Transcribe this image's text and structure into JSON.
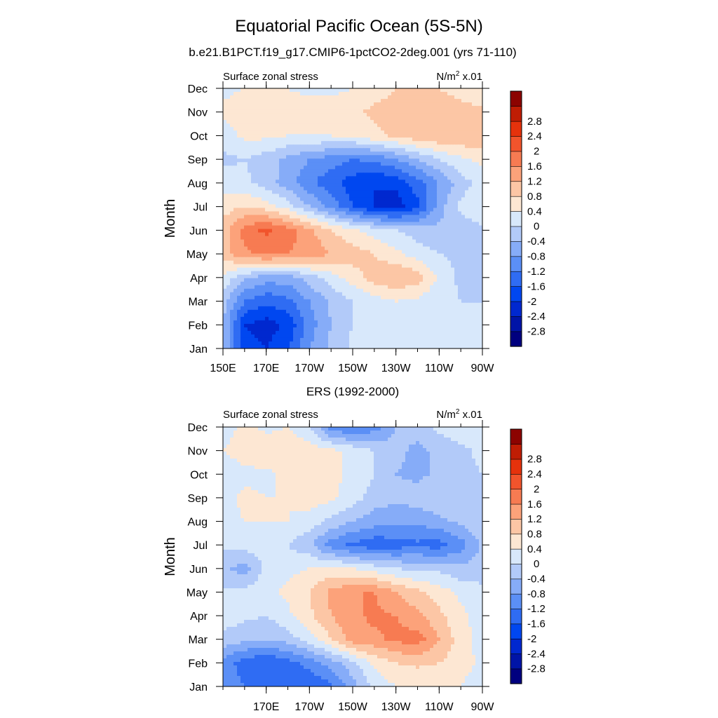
{
  "title": "Equatorial Pacific Ocean (5S-5N)",
  "subtitle": "b.e21.B1PCT.f19_g17.CMIP6-1pctCO2-2deg.001 (yrs 71-110)",
  "colors": [
    "#00007f",
    "#0014a7",
    "#0028cf",
    "#0047f0",
    "#2f6cf3",
    "#5b8ff6",
    "#86acf8",
    "#b2caf9",
    "#d8e8fb",
    "#fde7d3",
    "#fcc6a5",
    "#fca27a",
    "#f77b52",
    "#f1542c",
    "#e5320c",
    "#bf1d04",
    "#8c0300"
  ],
  "levels": [
    "-2.8",
    "-2.4",
    "-2",
    "-1.6",
    "-1.2",
    "-0.8",
    "-0.4",
    "0",
    "0.4",
    "0.8",
    "1.2",
    "1.6",
    "2",
    "2.4",
    "2.8"
  ],
  "chart_data": [
    {
      "type": "heatmap",
      "title": "b.e21.B1PCT.f19_g17.CMIP6-1pctCO2-2deg.001 (yrs 71-110)",
      "left_label": "Surface zonal stress",
      "units_prefix": "N/m",
      "units_exp": "2",
      "units_suffix": " x.01",
      "ylabel": "Month",
      "xlabel": "",
      "x_ticks": [
        "150E",
        "170E",
        "170W",
        "150W",
        "130W",
        "110W",
        "90W"
      ],
      "x_tick_lon": [
        150,
        170,
        190,
        210,
        230,
        250,
        270
      ],
      "y_ticks": [
        "Jan",
        "Feb",
        "Mar",
        "Apr",
        "May",
        "Jun",
        "Jul",
        "Aug",
        "Sep",
        "Oct",
        "Nov",
        "Dec"
      ],
      "xlim": [
        150,
        270
      ],
      "ylim": [
        1,
        12
      ],
      "contour_levels": [
        -2.8,
        -2.4,
        -2,
        -1.6,
        -1.2,
        -0.8,
        -0.4,
        0,
        0.4,
        0.8,
        1.2,
        1.6,
        2,
        2.4,
        2.8
      ],
      "lon": [
        150,
        160,
        170,
        180,
        190,
        200,
        210,
        220,
        230,
        240,
        250,
        260,
        270
      ],
      "values": [
        [
          -0.4,
          -1.8,
          -2.0,
          -1.7,
          -0.8,
          -0.3,
          0.1,
          0.3,
          0.3,
          0.2,
          0.1,
          0.0,
          0.0
        ],
        [
          -0.4,
          -2.0,
          -2.2,
          -1.9,
          -1.0,
          -0.4,
          0.0,
          0.2,
          0.3,
          0.2,
          0.1,
          0.1,
          0.0
        ],
        [
          -0.2,
          -1.2,
          -1.5,
          -1.3,
          -0.8,
          -0.3,
          0.0,
          0.2,
          0.4,
          0.3,
          0.1,
          0.0,
          0.0
        ],
        [
          0.3,
          -0.3,
          -0.6,
          -0.6,
          -0.2,
          0.2,
          0.6,
          1.0,
          1.2,
          1.0,
          0.3,
          -0.1,
          -0.1
        ],
        [
          1.0,
          1.5,
          1.7,
          1.6,
          1.5,
          1.2,
          1.0,
          0.8,
          0.5,
          0.2,
          0.0,
          -0.1,
          -0.2
        ],
        [
          1.0,
          1.8,
          2.1,
          1.8,
          1.3,
          0.8,
          0.5,
          0.2,
          0.0,
          -0.2,
          -0.3,
          -0.2,
          -0.1
        ],
        [
          0.6,
          0.8,
          0.6,
          0.2,
          -0.4,
          -0.9,
          -1.6,
          -2.0,
          -2.2,
          -1.7,
          -0.6,
          0.1,
          0.3
        ],
        [
          0.2,
          0.1,
          -0.2,
          -0.6,
          -1.1,
          -1.5,
          -1.8,
          -2.0,
          -1.9,
          -1.4,
          -0.8,
          -0.2,
          0.2
        ],
        [
          -0.1,
          0.0,
          -0.2,
          -0.5,
          -0.8,
          -1.0,
          -1.2,
          -1.1,
          -0.8,
          -0.4,
          0.0,
          0.3,
          0.5
        ],
        [
          0.2,
          0.5,
          0.5,
          0.4,
          0.4,
          0.4,
          0.5,
          0.7,
          0.9,
          1.1,
          1.2,
          1.2,
          1.1
        ],
        [
          0.5,
          0.6,
          0.6,
          0.6,
          0.6,
          0.6,
          0.7,
          0.9,
          1.0,
          1.1,
          1.1,
          1.0,
          0.9
        ],
        [
          0.3,
          0.4,
          0.5,
          0.4,
          0.3,
          0.3,
          0.4,
          0.6,
          0.8,
          0.9,
          0.8,
          0.6,
          0.4
        ]
      ]
    },
    {
      "type": "heatmap",
      "title": "ERS (1992-2000)",
      "left_label": "Surface zonal stress",
      "units_prefix": "N/m",
      "units_exp": "2",
      "units_suffix": " x.01",
      "ylabel": "Month",
      "xlabel": "",
      "x_ticks": [
        "170E",
        "170W",
        "150W",
        "130W",
        "110W",
        "90W"
      ],
      "x_tick_lon": [
        170,
        190,
        210,
        230,
        250,
        270
      ],
      "y_ticks": [
        "Jan",
        "Feb",
        "Mar",
        "Apr",
        "May",
        "Jun",
        "Jul",
        "Aug",
        "Sep",
        "Oct",
        "Nov",
        "Dec"
      ],
      "xlim": [
        150,
        270
      ],
      "ylim": [
        1,
        12
      ],
      "contour_levels": [
        -2.8,
        -2.4,
        -2,
        -1.6,
        -1.2,
        -0.8,
        -0.4,
        0,
        0.4,
        0.8,
        1.2,
        1.6,
        2,
        2.4,
        2.8
      ],
      "lon": [
        150,
        160,
        170,
        180,
        190,
        200,
        210,
        220,
        230,
        240,
        250,
        260,
        270
      ],
      "values": [
        [
          -0.9,
          -1.2,
          -1.5,
          -1.5,
          -1.6,
          -1.3,
          -0.6,
          0.1,
          0.4,
          0.4,
          0.5,
          0.4,
          0.1
        ],
        [
          -1.0,
          -1.4,
          -1.6,
          -1.4,
          -1.0,
          -0.6,
          -0.1,
          0.5,
          0.8,
          0.9,
          0.8,
          0.6,
          0.3
        ],
        [
          -0.1,
          -0.3,
          -0.4,
          -0.2,
          0.2,
          0.8,
          1.4,
          1.5,
          1.7,
          1.8,
          1.2,
          0.6,
          0.2
        ],
        [
          0.2,
          0.1,
          0.0,
          0.3,
          0.7,
          1.2,
          1.5,
          1.7,
          1.6,
          1.3,
          0.9,
          0.5,
          0.2
        ],
        [
          0.1,
          0.1,
          0.3,
          0.5,
          0.8,
          1.3,
          1.6,
          1.6,
          1.2,
          0.9,
          0.6,
          0.3,
          0.1
        ],
        [
          -0.3,
          -0.6,
          0.1,
          0.3,
          0.4,
          0.5,
          0.4,
          0.2,
          0.0,
          -0.1,
          -0.1,
          -0.3,
          -0.2
        ],
        [
          0.1,
          0.2,
          0.2,
          0.0,
          -0.3,
          -1.0,
          -1.3,
          -1.5,
          -1.4,
          -1.3,
          -1.4,
          -1.0,
          -0.3
        ],
        [
          0.3,
          0.4,
          0.4,
          0.4,
          0.2,
          -0.1,
          -0.4,
          -0.6,
          -0.7,
          -0.7,
          -0.5,
          -0.3,
          -0.1
        ],
        [
          0.2,
          0.5,
          0.4,
          0.4,
          0.6,
          0.5,
          0.2,
          -0.2,
          -0.3,
          -0.2,
          -0.1,
          0.0,
          0.0
        ],
        [
          0.1,
          0.3,
          0.3,
          0.5,
          0.6,
          0.5,
          0.3,
          0.0,
          -0.4,
          -0.5,
          -0.3,
          -0.1,
          0.0
        ],
        [
          0.4,
          0.6,
          0.7,
          0.6,
          0.6,
          0.5,
          0.3,
          0.0,
          -0.3,
          -0.5,
          -0.3,
          -0.1,
          0.1
        ],
        [
          0.2,
          0.5,
          0.3,
          0.4,
          0.1,
          -1.0,
          -1.3,
          -1.0,
          -0.4,
          -0.2,
          0.1,
          0.3,
          0.2
        ]
      ]
    }
  ]
}
